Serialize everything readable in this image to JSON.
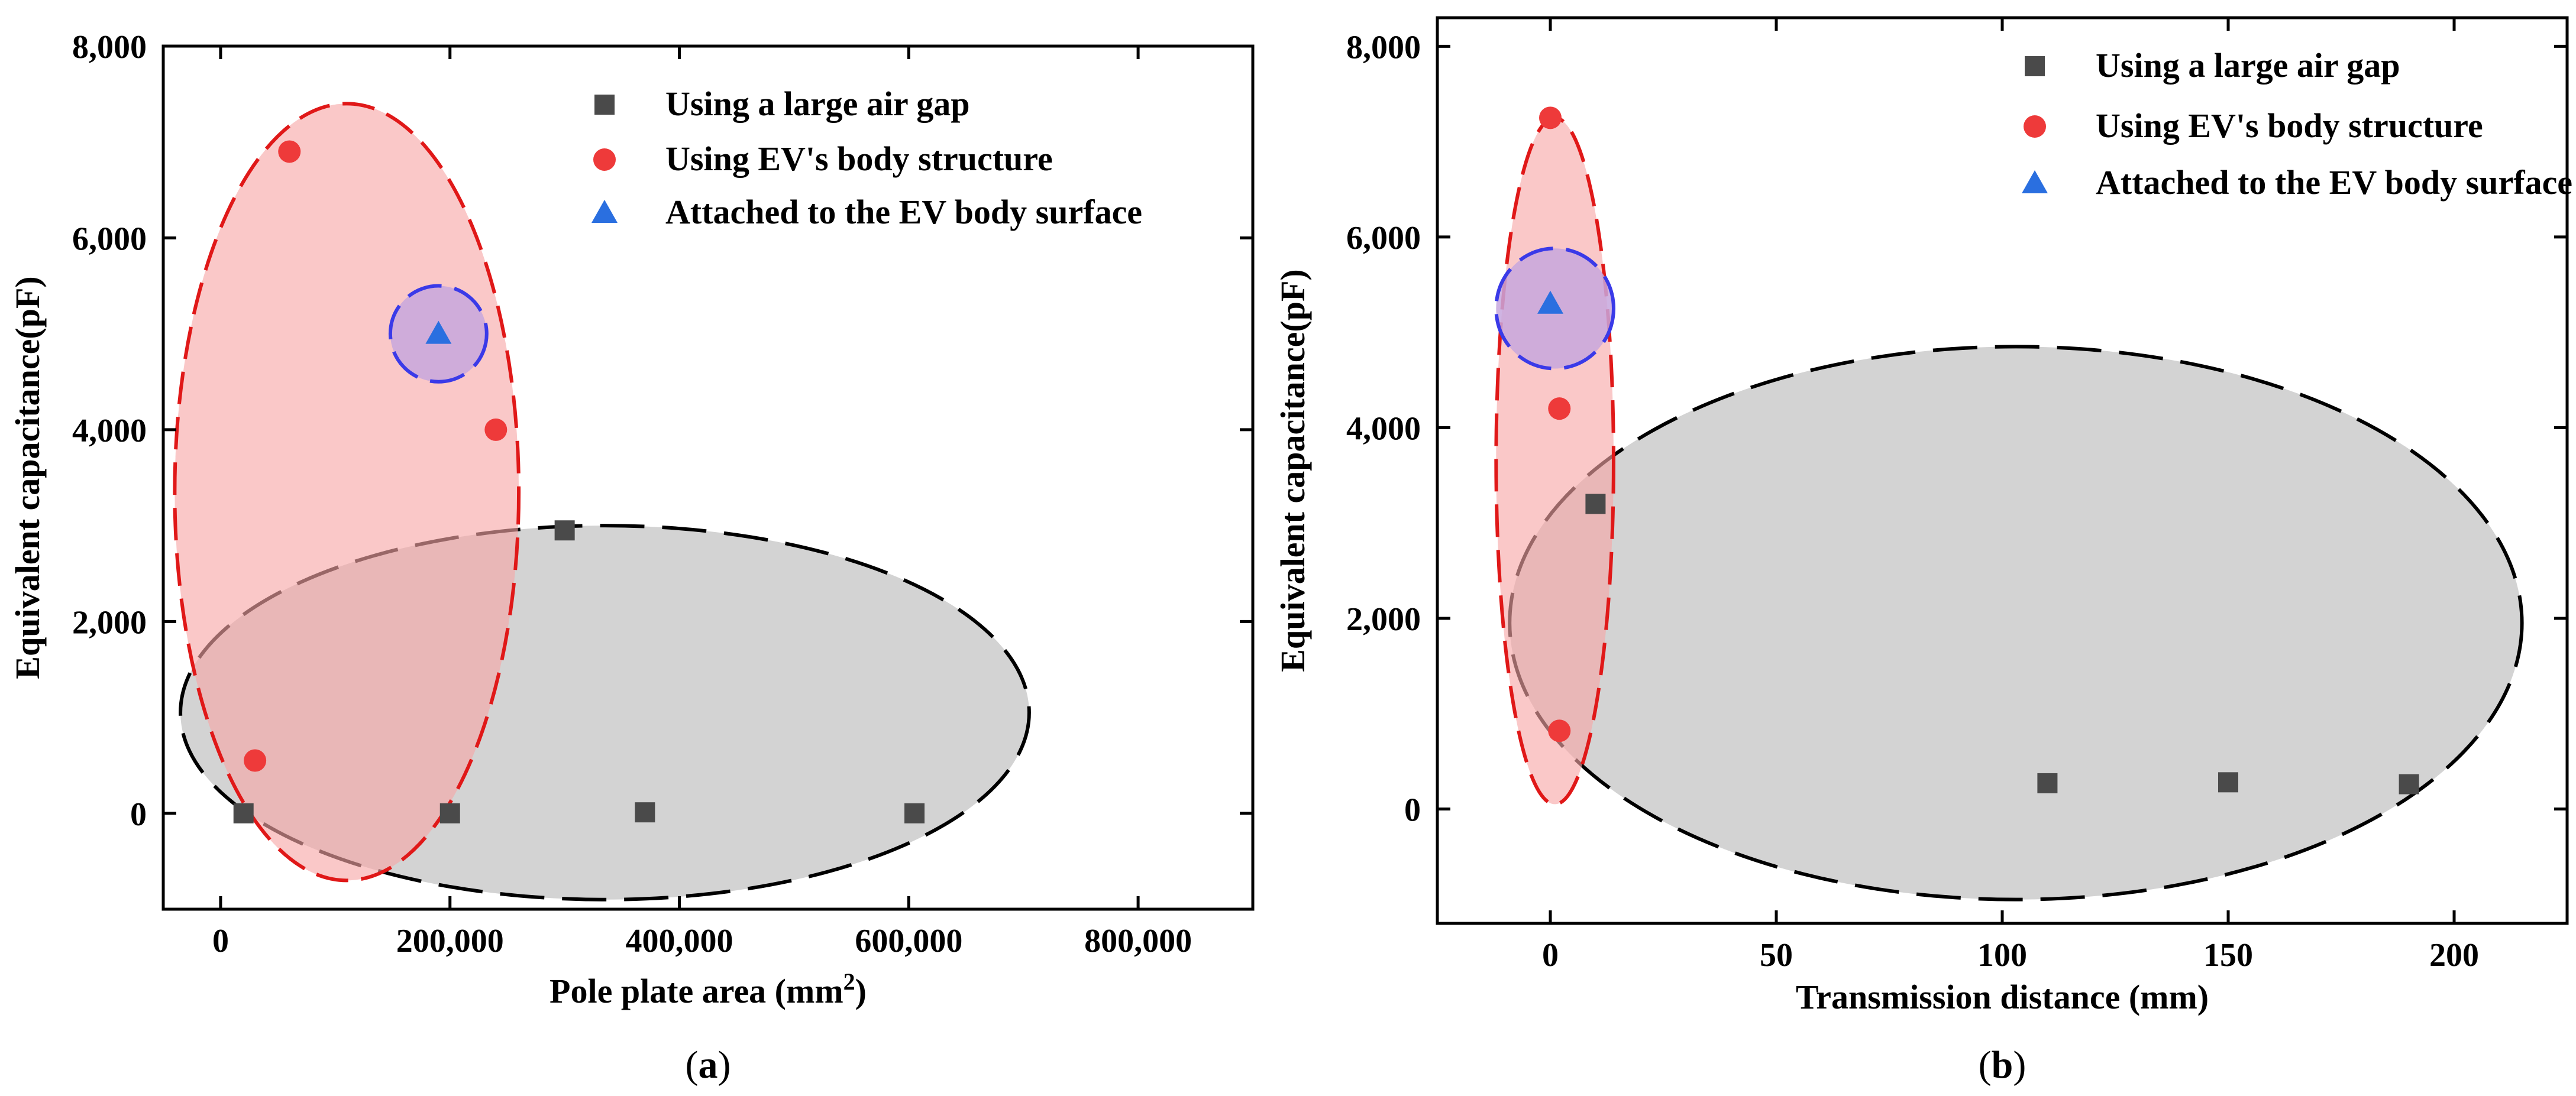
{
  "colors": {
    "series_square": "#4a4a4a",
    "series_circle": "#ee3a3a",
    "series_triangle": "#2a6fe0",
    "region_gray_fill": "#d3d3d3",
    "region_red_fill": "#f7a6a6",
    "region_blue_fill": "#c7a7dd",
    "outline_black": "#000000",
    "outline_red": "#e01818",
    "outline_blue": "#3a3ae8"
  },
  "legend_entries": [
    {
      "label": "Using a large air gap",
      "marker": "square-icon"
    },
    {
      "label": "Using EV's body structure",
      "marker": "circle-icon"
    },
    {
      "label": "Attached to the EV body surface",
      "marker": "triangle-icon"
    }
  ],
  "chart_data": [
    {
      "type": "scatter",
      "panel_label": {
        "open": "(",
        "letter": "a",
        "close": ")"
      },
      "xlabel": "Pole plate area (mm",
      "xlabel_sup": "2",
      "xlabel_close": ")",
      "ylabel": "Equivalent capacitance(pF)",
      "xlim": [
        -50000,
        900000
      ],
      "ylim": [
        -1000,
        8000
      ],
      "xticks": [
        0,
        200000,
        400000,
        600000,
        800000
      ],
      "xtick_labels": [
        "0",
        "200,000",
        "400,000",
        "600,000",
        "800,000"
      ],
      "yticks": [
        0,
        2000,
        4000,
        6000,
        8000
      ],
      "ytick_labels": [
        "0",
        "2,000",
        "4,000",
        "6,000",
        "8,000"
      ],
      "series": [
        {
          "name": "Using a large air gap",
          "marker": "square",
          "points": [
            [
              20000,
              0
            ],
            [
              200000,
              0
            ],
            [
              300000,
              2950
            ],
            [
              370000,
              10
            ],
            [
              605000,
              0
            ]
          ]
        },
        {
          "name": "Using EV's body structure",
          "marker": "circle",
          "points": [
            [
              30000,
              550
            ],
            [
              60000,
              6900
            ],
            [
              240000,
              4000
            ]
          ]
        },
        {
          "name": "Attached to the EV body surface",
          "marker": "triangle",
          "points": [
            [
              190000,
              5000
            ]
          ]
        }
      ],
      "regions": [
        {
          "name": "gray",
          "cx": 335000,
          "cy": 1050,
          "rx": 370000,
          "ry": 1950
        },
        {
          "name": "red",
          "cx": 110000,
          "cy": 3350,
          "rx": 150000,
          "ry": 4050
        },
        {
          "name": "blue",
          "cx": 190000,
          "cy": 5000,
          "rx": 42000,
          "ry": 500
        }
      ]
    },
    {
      "type": "scatter",
      "panel_label": {
        "open": "(",
        "letter": "b",
        "close": ")"
      },
      "xlabel": "Transmission distance (mm)",
      "ylabel": "Equivalent capacitance(pF)",
      "xlim": [
        -25,
        225
      ],
      "ylim": [
        -1200,
        8300
      ],
      "xticks": [
        0,
        50,
        100,
        150,
        200
      ],
      "xtick_labels": [
        "0",
        "50",
        "100",
        "150",
        "200"
      ],
      "yticks": [
        0,
        2000,
        4000,
        6000,
        8000
      ],
      "ytick_labels": [
        "0",
        "2,000",
        "4,000",
        "6,000",
        "8,000"
      ],
      "series": [
        {
          "name": "Using a large air gap",
          "marker": "square",
          "points": [
            [
              10,
              3200
            ],
            [
              110,
              270
            ],
            [
              150,
              280
            ],
            [
              190,
              260
            ]
          ]
        },
        {
          "name": "Using EV's body structure",
          "marker": "circle",
          "points": [
            [
              0,
              7250
            ],
            [
              2,
              4200
            ],
            [
              2,
              820
            ]
          ]
        },
        {
          "name": "Attached to the EV body surface",
          "marker": "triangle",
          "points": [
            [
              0,
              5300
            ]
          ]
        }
      ],
      "regions": [
        {
          "name": "gray",
          "cx": 103,
          "cy": 1950,
          "rx": 112,
          "ry": 2900
        },
        {
          "name": "red",
          "cx": 1,
          "cy": 3650,
          "rx": 13,
          "ry": 3600
        },
        {
          "name": "blue",
          "cx": 1,
          "cy": 5250,
          "rx": 13,
          "ry": 630
        }
      ]
    }
  ]
}
